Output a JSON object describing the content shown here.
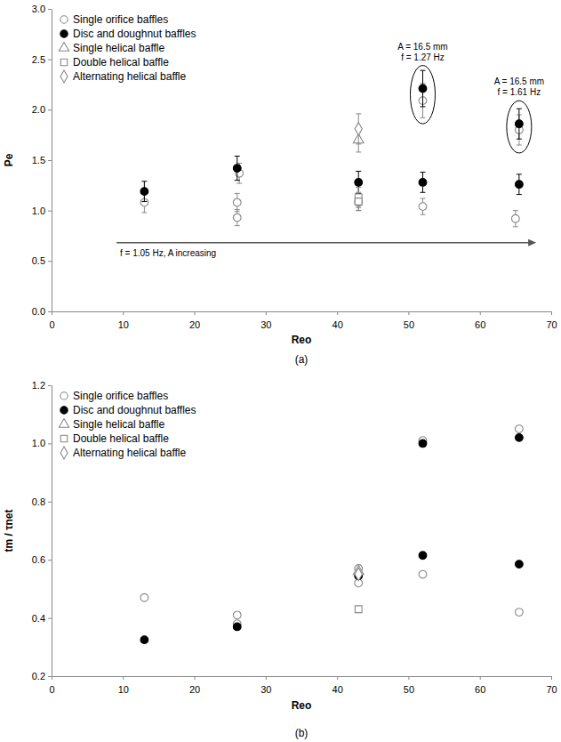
{
  "chart_data": [
    {
      "type": "scatter",
      "x_label": "Reo",
      "y_label": "Pe",
      "xlim": [
        0,
        70
      ],
      "xticks": [
        0,
        10,
        20,
        30,
        40,
        50,
        60,
        70
      ],
      "ylim": [
        0,
        3
      ],
      "yticks": [
        {
          "value": 0,
          "label": "0.0"
        },
        0.5,
        {
          "value": 1,
          "label": "1.0"
        },
        1.5,
        {
          "value": 2,
          "label": "2.0"
        },
        2.5,
        {
          "value": 3,
          "label": "3.0"
        }
      ],
      "grid": false,
      "legend": "upper left",
      "series": [
        {
          "name": "Single orifice baffles",
          "color": "#888888",
          "marker": "circle-open",
          "x": [
            13,
            26,
            26,
            26.3,
            43,
            52,
            52,
            65,
            65.5
          ],
          "values": [
            1.08,
            1.08,
            0.93,
            1.37,
            1.08,
            1.04,
            2.09,
            0.92,
            1.8
          ],
          "errors": [
            0.1,
            0.09,
            0.08,
            0.1,
            0.08,
            0.08,
            0.17,
            0.08,
            0.15
          ]
        },
        {
          "name": "Disc and doughnut baffles",
          "color": "#000000",
          "marker": "circle",
          "x": [
            13,
            26,
            43,
            52,
            52,
            65.5,
            65.5
          ],
          "values": [
            1.19,
            1.42,
            1.28,
            1.28,
            2.21,
            1.26,
            1.86
          ],
          "errors": [
            0.1,
            0.12,
            0.11,
            0.1,
            0.18,
            0.1,
            0.15
          ]
        },
        {
          "name": "Single helical baffle",
          "color": "#888888",
          "marker": "triangle-open",
          "x": [
            43
          ],
          "values": [
            1.7
          ],
          "errors": [
            0.12
          ]
        },
        {
          "name": "Double helical baffle",
          "color": "#888888",
          "marker": "square-open",
          "x": [
            43,
            43
          ],
          "values": [
            1.13,
            1.09
          ],
          "errors": [
            0.1,
            0.09
          ]
        },
        {
          "name": "Alternating helical baffle",
          "color": "#888888",
          "marker": "diamond-open",
          "x": [
            43
          ],
          "values": [
            1.81
          ],
          "errors": [
            0.15
          ]
        }
      ],
      "annotations": [
        [
          "A = 16.5 mm",
          "f = 1.27 Hz"
        ],
        [
          "A = 16.5 mm",
          "f = 1.61 Hz"
        ]
      ],
      "arrow_label": "f = 1.05 Hz, A increasing",
      "caption": "(a)"
    },
    {
      "type": "scatter",
      "x_label": "Reo",
      "y_label": "tm / τnet",
      "xlim": [
        0,
        70
      ],
      "xticks": [
        0,
        10,
        20,
        30,
        40,
        50,
        60,
        70
      ],
      "ylim": [
        0.2,
        1.2
      ],
      "yticks": [
        0.2,
        0.4,
        0.6,
        0.8,
        {
          "value": 1,
          "label": "1.0"
        },
        1.2
      ],
      "grid": false,
      "legend": "upper left",
      "series": [
        {
          "name": "Single orifice baffles",
          "color": "#888888",
          "marker": "circle-open",
          "x": [
            13,
            26,
            26,
            43,
            43,
            43,
            52,
            52,
            65.5,
            65.5
          ],
          "values": [
            0.47,
            0.41,
            0.38,
            0.57,
            0.55,
            0.52,
            1.01,
            0.55,
            1.05,
            0.42
          ]
        },
        {
          "name": "Disc and doughnut baffles",
          "color": "#000000",
          "marker": "circle",
          "x": [
            13,
            26,
            43,
            52,
            52,
            65.5,
            65.5
          ],
          "values": [
            0.325,
            0.37,
            0.545,
            1.0,
            0.615,
            1.02,
            0.585
          ]
        },
        {
          "name": "Single helical baffle",
          "color": "#888888",
          "marker": "triangle-open",
          "x": [
            43
          ],
          "values": [
            0.56
          ]
        },
        {
          "name": "Double helical baffle",
          "color": "#888888",
          "marker": "square-open",
          "x": [
            43
          ],
          "values": [
            0.43
          ]
        },
        {
          "name": "Alternating helical baffle",
          "color": "#888888",
          "marker": "diamond-open",
          "x": [
            43
          ],
          "values": [
            0.55
          ]
        }
      ],
      "caption": "(b)"
    }
  ]
}
